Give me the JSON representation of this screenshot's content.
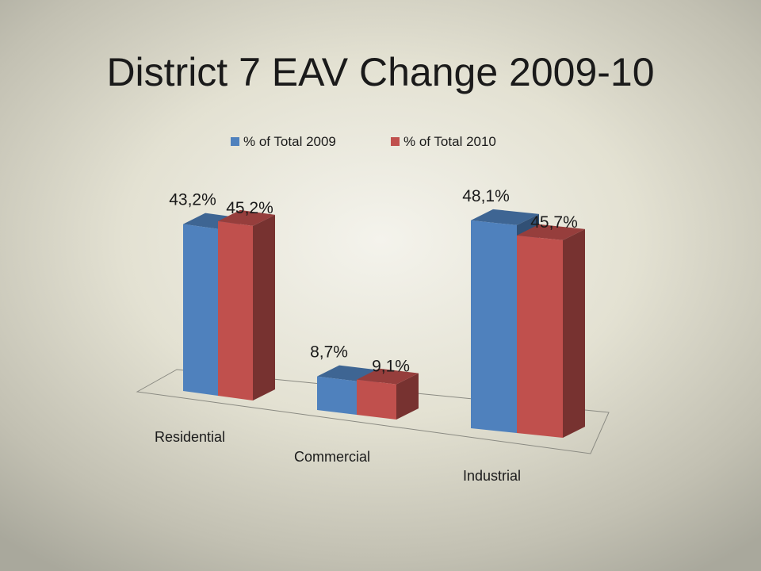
{
  "slide": {
    "title": "District 7 EAV Change 2009-10"
  },
  "colors": {
    "series_2009": "#4f81bd",
    "series_2010": "#c0504d"
  },
  "chart_data": {
    "type": "bar",
    "style": "3d-clustered-column",
    "title": "",
    "xlabel": "",
    "ylabel": "",
    "categories": [
      "Residential",
      "Commercial",
      "Industrial"
    ],
    "series": [
      {
        "name": "% of Total 2009",
        "values": [
          43.2,
          8.7,
          48.1
        ],
        "labels": [
          "43,2%",
          "8,7%",
          "48,1%"
        ]
      },
      {
        "name": "% of Total 2010",
        "values": [
          45.2,
          9.1,
          45.7
        ],
        "labels": [
          "45,2%",
          "9,1%",
          "45,7%"
        ]
      }
    ],
    "ylim": [
      0,
      50
    ],
    "legend": "top",
    "grid": false
  }
}
